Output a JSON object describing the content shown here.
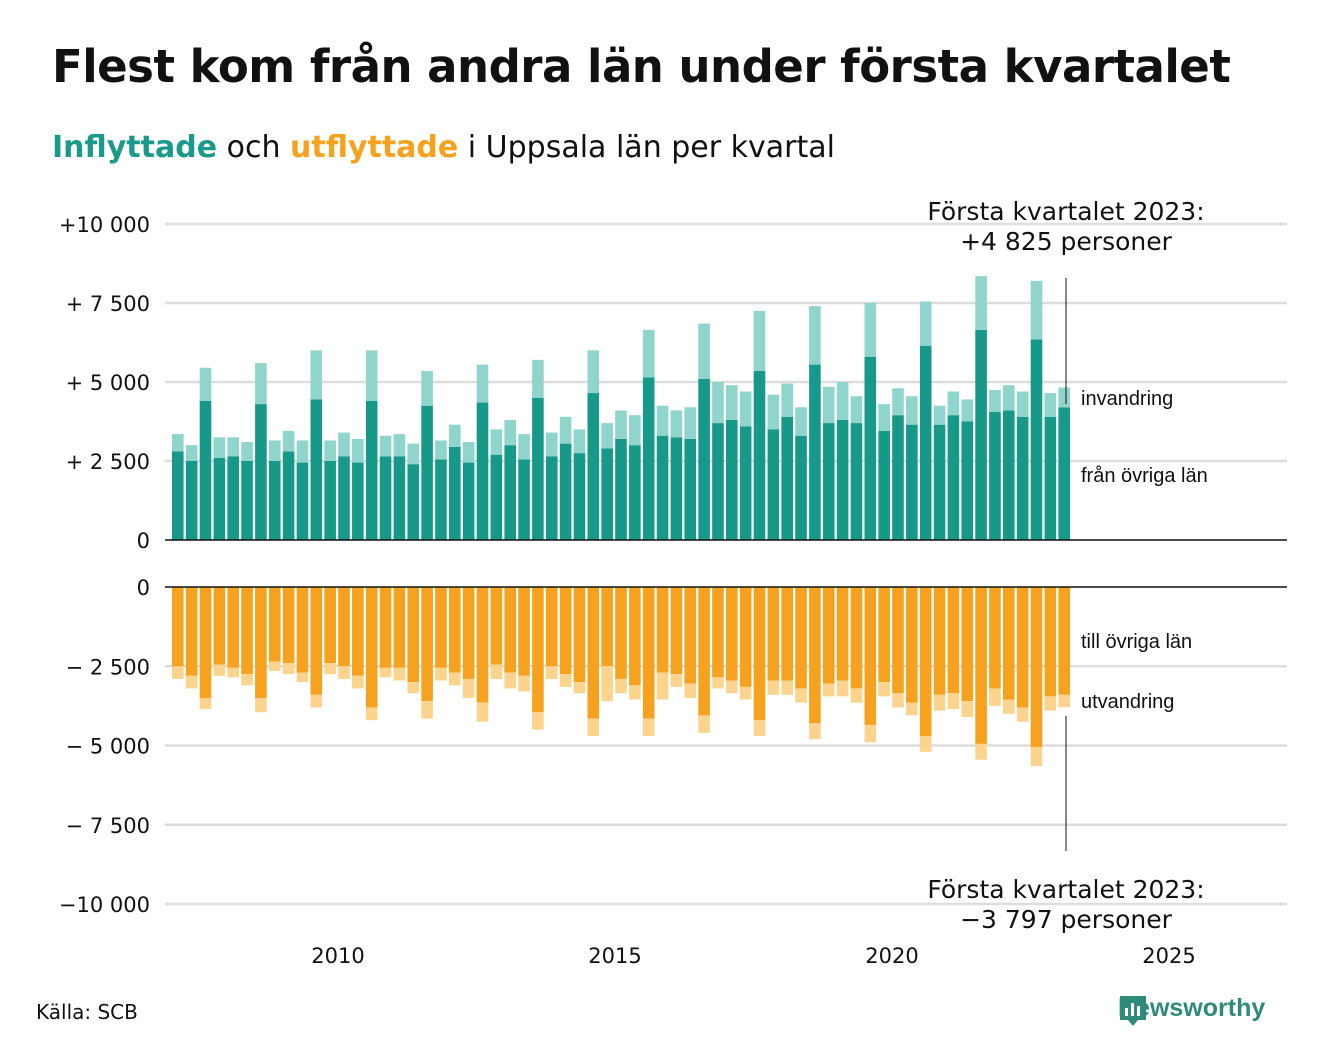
{
  "title": "Flest kom från andra län under första kvartalet",
  "subtitle": {
    "in_word": "Inflyttade",
    "mid": " och ",
    "out_word": "utflyttade",
    "rest": " i Uppsala län per kvartal"
  },
  "source": "Källa: SCB",
  "brand": "Newsworthy",
  "colors": {
    "in_other": "#17998a",
    "in_immig": "#8fd5cc",
    "out_other": "#f6a21e",
    "out_emig": "#fcd48e",
    "grid": "#dddddd",
    "axis": "#111111"
  },
  "chart_data": [
    {
      "type": "bar",
      "stacked": true,
      "ylim": [
        0,
        10000
      ],
      "y_ticks": [
        10000,
        7500,
        5000,
        2500,
        0
      ],
      "y_tick_labels": [
        "+10 000",
        "+ 7 500",
        "+ 5 000",
        "+ 2 500",
        "0"
      ],
      "series_labels": [
        "invandring",
        "från övriga län"
      ],
      "annotation": [
        "Första kvartalet 2023:",
        "+4 825 personer"
      ],
      "series": [
        {
          "name": "från övriga län",
          "values": [
            2800,
            2500,
            4400,
            2600,
            2650,
            2500,
            4300,
            2500,
            2800,
            2450,
            4450,
            2500,
            2650,
            2450,
            4400,
            2650,
            2650,
            2400,
            4250,
            2550,
            2950,
            2450,
            4350,
            2700,
            3000,
            2550,
            4500,
            2650,
            3050,
            2750,
            4650,
            2900,
            3200,
            3000,
            5150,
            3300,
            3250,
            3200,
            5100,
            3700,
            3800,
            3600,
            5350,
            3500,
            3900,
            3300,
            5550,
            3700,
            3800,
            3700,
            5800,
            3450,
            3950,
            3650,
            6150,
            3650,
            3950,
            3750,
            6650,
            4050,
            4100,
            3900,
            6350,
            3900,
            4200
          ]
        },
        {
          "name": "invandring",
          "values": [
            550,
            500,
            1050,
            650,
            600,
            600,
            1300,
            650,
            650,
            700,
            1550,
            650,
            750,
            750,
            1600,
            650,
            700,
            650,
            1100,
            600,
            700,
            650,
            1200,
            800,
            800,
            800,
            1200,
            750,
            850,
            750,
            1350,
            800,
            900,
            950,
            1500,
            950,
            850,
            1000,
            1750,
            1300,
            1100,
            1100,
            1900,
            1100,
            1050,
            900,
            1850,
            1150,
            1200,
            850,
            1700,
            850,
            850,
            900,
            1400,
            600,
            750,
            700,
            1700,
            700,
            800,
            800,
            1850,
            750,
            625
          ]
        }
      ]
    },
    {
      "type": "bar",
      "stacked": true,
      "ylim": [
        -10000,
        0
      ],
      "y_ticks": [
        0,
        -2500,
        -5000,
        -7500,
        -10000
      ],
      "y_tick_labels": [
        "0",
        "− 2 500",
        "− 5 000",
        "− 7 500",
        "−10 000"
      ],
      "x_ticks": [
        2010,
        2015,
        2020,
        2025
      ],
      "x_tick_labels": [
        "2010",
        "2015",
        "2020",
        "2025"
      ],
      "series_labels": [
        "till övriga län",
        "utvandring"
      ],
      "annotation": [
        "Första kvartalet 2023:",
        "−3 797 personer"
      ],
      "series": [
        {
          "name": "till övriga län",
          "values": [
            -2500,
            -2800,
            -3500,
            -2450,
            -2550,
            -2750,
            -3500,
            -2350,
            -2400,
            -2700,
            -3400,
            -2400,
            -2500,
            -2800,
            -3800,
            -2550,
            -2550,
            -3000,
            -3600,
            -2550,
            -2700,
            -2900,
            -3650,
            -2450,
            -2700,
            -2800,
            -3950,
            -2500,
            -2750,
            -3000,
            -4150,
            -2500,
            -2900,
            -3100,
            -4150,
            -2700,
            -2750,
            -3050,
            -4050,
            -2850,
            -2950,
            -3150,
            -4200,
            -2950,
            -2950,
            -3200,
            -4300,
            -3050,
            -2950,
            -3200,
            -4350,
            -3000,
            -3350,
            -3650,
            -4700,
            -3400,
            -3350,
            -3600,
            -4950,
            -3200,
            -3550,
            -3800,
            -5050,
            -3450,
            -3400
          ]
        },
        {
          "name": "utvandring",
          "values": [
            -400,
            -400,
            -350,
            -350,
            -300,
            -350,
            -450,
            -300,
            -350,
            -300,
            -400,
            -350,
            -400,
            -400,
            -400,
            -300,
            -400,
            -350,
            -550,
            -400,
            -400,
            -600,
            -600,
            -450,
            -500,
            -500,
            -550,
            -400,
            -400,
            -350,
            -550,
            -1100,
            -450,
            -450,
            -550,
            -850,
            -400,
            -450,
            -550,
            -350,
            -400,
            -400,
            -500,
            -450,
            -450,
            -450,
            -500,
            -400,
            -500,
            -450,
            -550,
            -450,
            -450,
            -400,
            -500,
            -500,
            -500,
            -500,
            -500,
            -550,
            -450,
            -450,
            -600,
            -450,
            -397
          ]
        }
      ]
    }
  ]
}
